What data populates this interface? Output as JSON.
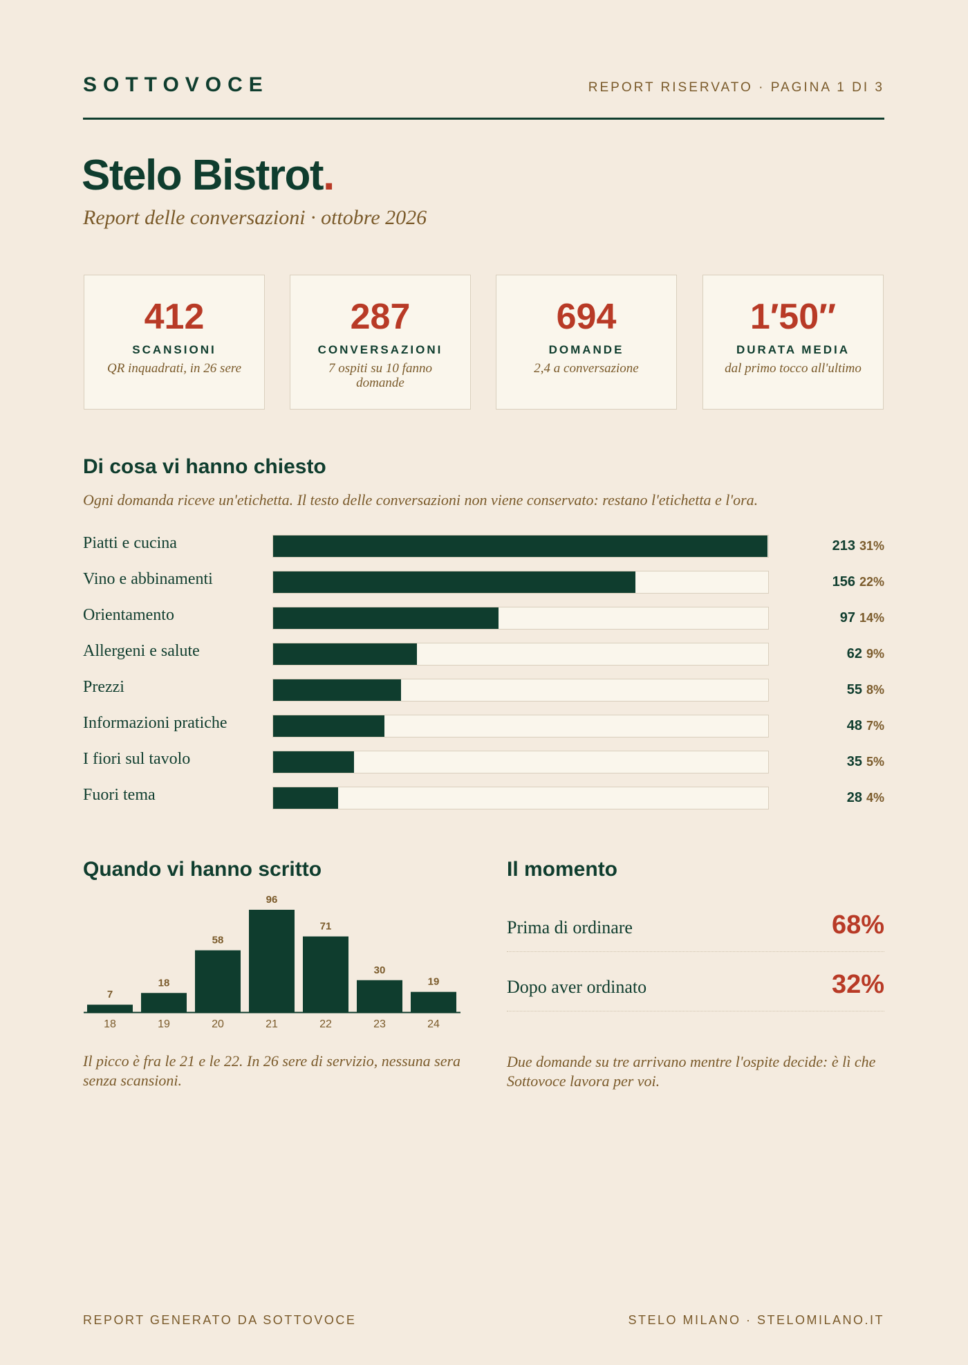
{
  "header": {
    "brand": "SOTTOVOCE",
    "meta": "REPORT RISERVATO · PAGINA 1 DI 3"
  },
  "title": "Stelo Bistrot",
  "title_dot": ".",
  "subtitle": "Report delle conversazioni · ottobre 2026",
  "kpis": [
    {
      "value": "412",
      "label": "SCANSIONI",
      "note": "QR inquadrati, in 26 sere"
    },
    {
      "value": "287",
      "label": "CONVERSAZIONI",
      "note": "7 ospiti su 10 fanno domande"
    },
    {
      "value": "694",
      "label": "DOMANDE",
      "note": "2,4 a conversazione"
    },
    {
      "value": "1′50″",
      "label": "DURATA MEDIA",
      "note": "dal primo tocco all'ultimo"
    }
  ],
  "topics": {
    "heading": "Di cosa vi hanno chiesto",
    "note": "Ogni domanda riceve un'etichetta. Il testo delle conversazioni non viene conservato: restano l'etichetta e l'ora.",
    "chart_data": {
      "type": "bar",
      "orientation": "horizontal",
      "categories": [
        "Piatti e cucina",
        "Vino e abbinamenti",
        "Orientamento",
        "Allergeni e salute",
        "Prezzi",
        "Informazioni pratiche",
        "I fiori sul tavolo",
        "Fuori tema"
      ],
      "values": [
        213,
        156,
        97,
        62,
        55,
        48,
        35,
        28
      ],
      "shares": [
        "31%",
        "22%",
        "14%",
        "9%",
        "8%",
        "7%",
        "5%",
        "4%"
      ],
      "xlim": [
        0,
        213
      ],
      "color": "#0f3d2e"
    }
  },
  "hours": {
    "heading": "Quando vi hanno scritto",
    "chart_data": {
      "type": "bar",
      "x": [
        18,
        19,
        20,
        21,
        22,
        23,
        24
      ],
      "values": [
        7,
        18,
        58,
        96,
        71,
        30,
        19
      ],
      "ylim": [
        0,
        96
      ],
      "color": "#0f3d2e"
    },
    "caption": "Il picco è fra le 21 e le 22. In 26 sere di servizio, nessuna sera senza scansioni."
  },
  "moment": {
    "heading": "Il momento",
    "rows": [
      {
        "label": "Prima di ordinare",
        "value": "68%"
      },
      {
        "label": "Dopo aver ordinato",
        "value": "32%"
      }
    ],
    "caption": "Due domande su tre arrivano mentre l'ospite decide: è lì che Sottovoce lavora per voi."
  },
  "footer": {
    "left": "REPORT GENERATO DA SOTTOVOCE",
    "right": "STELO MILANO · STELOMILANO.IT"
  }
}
